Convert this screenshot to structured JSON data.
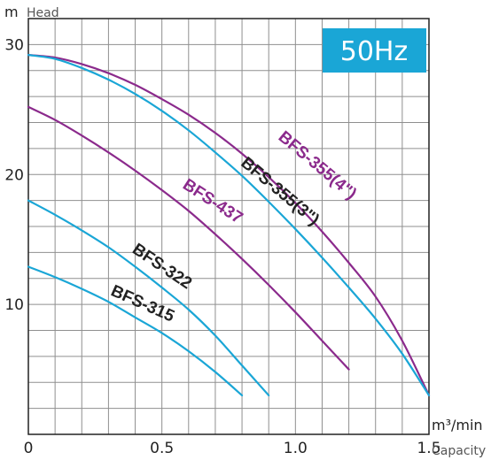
{
  "chart_data": {
    "type": "line",
    "title": "",
    "badge": "50Hz",
    "badge_color": "#1aa6d6",
    "ylabel": "Head",
    "yunit": "m",
    "xlabel": "Capacity",
    "xunit": "m³/min",
    "xlim": [
      0,
      1.5
    ],
    "ylim": [
      0,
      32
    ],
    "x_ticks": [
      "0",
      "0.5",
      "1.0",
      "1.5"
    ],
    "y_ticks": [
      "10",
      "20",
      "30"
    ],
    "grid": true,
    "series": [
      {
        "name": "BFS-355(4\")",
        "color": "#8b2a8c",
        "x": [
          0,
          0.1,
          0.2,
          0.3,
          0.4,
          0.5,
          0.6,
          0.7,
          0.8,
          0.9,
          1.0,
          1.1,
          1.2,
          1.3,
          1.4,
          1.5
        ],
        "y": [
          29.2,
          29.0,
          28.5,
          27.8,
          26.9,
          25.8,
          24.6,
          23.2,
          21.6,
          19.8,
          17.8,
          15.6,
          13.2,
          10.6,
          7.2,
          3.0
        ]
      },
      {
        "name": "BFS-355(3\")",
        "color": "#1aa6d6",
        "x": [
          0,
          0.1,
          0.2,
          0.3,
          0.4,
          0.5,
          0.6,
          0.7,
          0.8,
          0.9,
          1.0,
          1.1,
          1.2,
          1.3,
          1.4,
          1.5
        ],
        "y": [
          29.2,
          28.9,
          28.2,
          27.3,
          26.2,
          24.9,
          23.4,
          21.7,
          19.9,
          17.9,
          15.8,
          13.6,
          11.3,
          8.9,
          6.2,
          3.0
        ]
      },
      {
        "name": "BFS-437",
        "color": "#8b2a8c",
        "x": [
          0,
          0.1,
          0.2,
          0.3,
          0.4,
          0.5,
          0.6,
          0.7,
          0.8,
          0.9,
          1.0,
          1.1,
          1.2
        ],
        "y": [
          25.2,
          24.2,
          23.0,
          21.7,
          20.3,
          18.8,
          17.2,
          15.4,
          13.5,
          11.5,
          9.4,
          7.2,
          5.0
        ]
      },
      {
        "name": "BFS-322",
        "color": "#1aa6d6",
        "x": [
          0,
          0.1,
          0.2,
          0.3,
          0.4,
          0.5,
          0.6,
          0.7,
          0.8,
          0.9
        ],
        "y": [
          18.0,
          16.9,
          15.7,
          14.4,
          12.9,
          11.3,
          9.6,
          7.6,
          5.3,
          3.0
        ]
      },
      {
        "name": "BFS-315",
        "color": "#1aa6d6",
        "x": [
          0,
          0.1,
          0.2,
          0.3,
          0.4,
          0.5,
          0.6,
          0.7,
          0.8
        ],
        "y": [
          12.9,
          12.1,
          11.2,
          10.2,
          9.0,
          7.8,
          6.4,
          4.8,
          3.0
        ]
      }
    ],
    "labels": [
      {
        "text": "BFS-355(4\")",
        "color": "#8b2a8c",
        "x": 1.07,
        "y": 20.4,
        "angle": 40
      },
      {
        "text": "BFS-355(3\")",
        "color": "#222222",
        "x": 0.93,
        "y": 18.4,
        "angle": 40
      },
      {
        "text": "BFS-437",
        "color": "#8b2a8c",
        "x": 0.68,
        "y": 17.6,
        "angle": 33
      },
      {
        "text": "BFS-322",
        "color": "#222222",
        "x": 0.49,
        "y": 12.6,
        "angle": 34
      },
      {
        "text": "BFS-315",
        "color": "#222222",
        "x": 0.42,
        "y": 9.7,
        "angle": 24
      }
    ]
  }
}
